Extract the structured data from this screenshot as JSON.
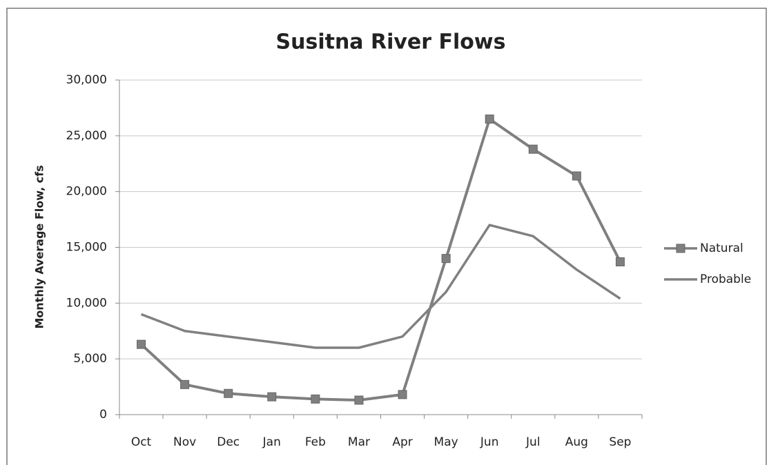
{
  "chart_data": {
    "type": "line",
    "title": "Susitna River Flows",
    "y_label": "Monthly Average Flow, cfs",
    "categories": [
      "Oct",
      "Nov",
      "Dec",
      "Jan",
      "Feb",
      "Mar",
      "Apr",
      "May",
      "Jun",
      "Jul",
      "Aug",
      "Sep"
    ],
    "series": [
      {
        "name": "Natural",
        "color": "#7f7f7f",
        "marker": "square",
        "values": [
          6300,
          2700,
          1900,
          1600,
          1400,
          1300,
          1800,
          14000,
          26500,
          23800,
          21400,
          13700
        ]
      },
      {
        "name": "Probable",
        "color": "#808080",
        "values": [
          9000,
          7500,
          7000,
          6500,
          6000,
          6000,
          7000,
          11000,
          17000,
          16000,
          13000,
          10400
        ]
      }
    ],
    "ylim": [
      0,
      30000
    ],
    "yticks": [
      0,
      {
        "value": 5000,
        "label": "5,000"
      },
      {
        "value": 10000,
        "label": "10,000"
      },
      {
        "value": 15000,
        "label": "15,000"
      },
      {
        "value": 20000,
        "label": "20,000"
      },
      {
        "value": 25000,
        "label": "25,000"
      },
      {
        "value": 30000,
        "label": "30,000"
      }
    ],
    "grid": true,
    "legend": "right"
  }
}
